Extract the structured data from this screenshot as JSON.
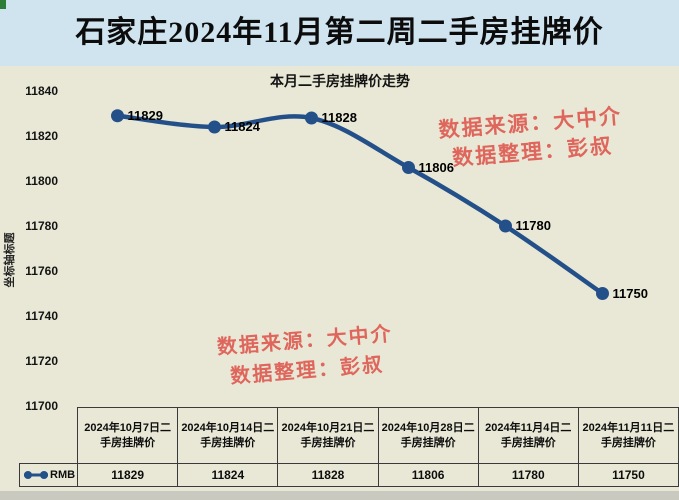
{
  "page": {
    "title": "石家庄2024年11月第二周二手房挂牌价"
  },
  "chart": {
    "title": "本月二手房挂牌价走势",
    "y_axis_title": "坐标轴标题"
  },
  "watermark": {
    "line1": "数据来源：大中介",
    "line2": "数据整理：彭叔"
  },
  "table": {
    "legend_label": "RMB"
  },
  "colors": {
    "title_bar_bg": "#cfe4ef",
    "chart_bg": "#e9e8d6",
    "line": "#24508a",
    "watermark_red": "#df665c",
    "table_border": "#3a3a3a"
  },
  "chart_data": {
    "type": "line",
    "title": "本月二手房挂牌价走势",
    "xlabel": "",
    "ylabel": "坐标轴标题",
    "categories": [
      "2024年10月7日二手房挂牌价",
      "2024年10月14日二手房挂牌价",
      "2024年10月21日二手房挂牌价",
      "2024年10月28日二手房挂牌价",
      "2024年11月4日二手房挂牌价",
      "2024年11月11日二手房挂牌价"
    ],
    "series": [
      {
        "name": "RMB",
        "values": [
          11829,
          11824,
          11828,
          11806,
          11780,
          11750
        ]
      }
    ],
    "yticks": [
      11840,
      11820,
      11800,
      11780,
      11760,
      11740,
      11720,
      11700
    ],
    "ylim": [
      11700,
      11840
    ],
    "grid": false,
    "smooth_line": true,
    "data_labels": true,
    "legend_position": "table-left",
    "data_table_shown": true
  }
}
